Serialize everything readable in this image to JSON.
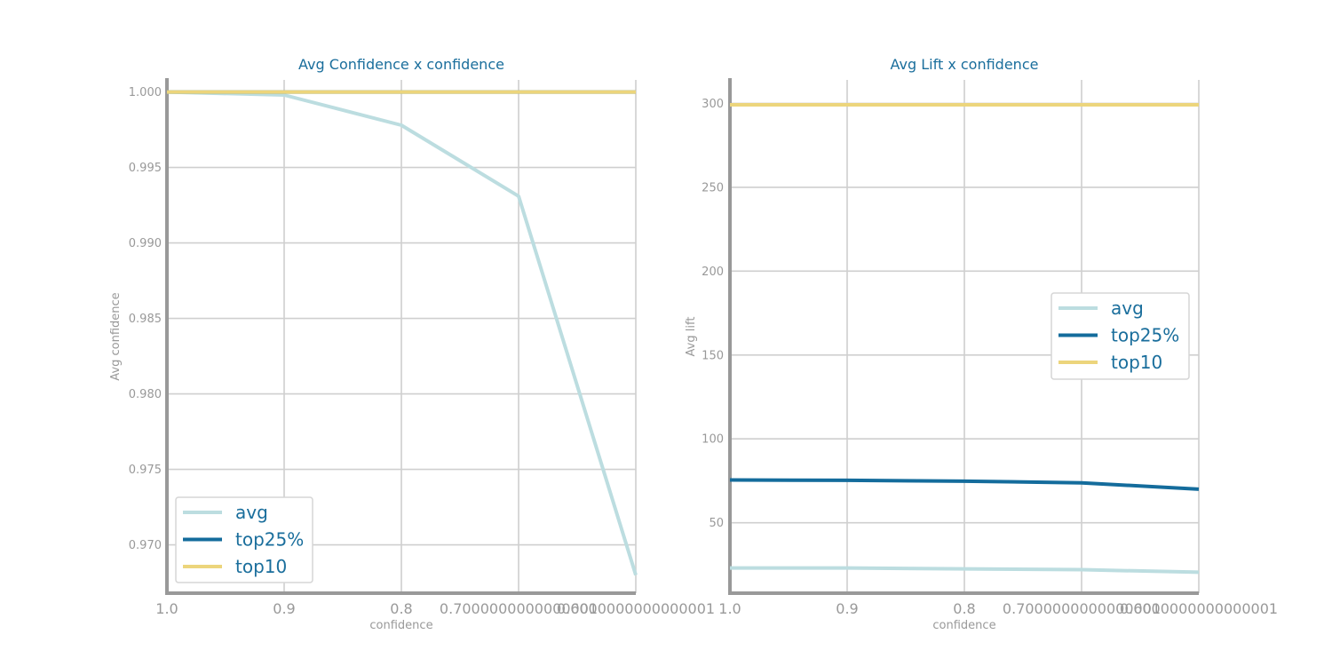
{
  "chart_data": [
    {
      "type": "line",
      "title": "Avg Confidence x confidence",
      "xlabel": "confidence",
      "ylabel": "Avg confidence",
      "categories": [
        "1.0",
        "0.9",
        "0.8",
        "0.7000000000000001",
        "0.6000000000000001"
      ],
      "yticks": [
        "0.970",
        "0.975",
        "0.980",
        "0.985",
        "0.990",
        "0.995",
        "1.000"
      ],
      "ylim": [
        0.9668,
        1.0008
      ],
      "legend_position": "lower-left",
      "series": [
        {
          "name": "avg",
          "color": "#bcdde0",
          "values": [
            1.0,
            0.9998,
            0.9978,
            0.9931,
            0.968
          ]
        },
        {
          "name": "top25%",
          "color": "#146c9c",
          "values": [
            1.0,
            1.0,
            1.0,
            1.0,
            1.0
          ]
        },
        {
          "name": "top10",
          "color": "#ecd57c",
          "values": [
            1.0,
            1.0,
            1.0,
            1.0,
            1.0
          ]
        }
      ]
    },
    {
      "type": "line",
      "title": "Avg Lift x confidence",
      "xlabel": "confidence",
      "ylabel": "Avg lift",
      "categories": [
        "1.0",
        "0.9",
        "0.8",
        "0.7000000000000001",
        "0.6000000000000001"
      ],
      "yticks": [
        "50",
        "100",
        "150",
        "200",
        "250",
        "300"
      ],
      "ylim": [
        8,
        314
      ],
      "legend_position": "center-right",
      "series": [
        {
          "name": "avg",
          "color": "#bcdde0",
          "values": [
            23,
            23,
            22.5,
            22,
            20.5
          ]
        },
        {
          "name": "top25%",
          "color": "#146c9c",
          "values": [
            75.5,
            75.3,
            74.8,
            73.8,
            70
          ]
        },
        {
          "name": "top10",
          "color": "#ecd57c",
          "values": [
            299.2,
            299.2,
            299.2,
            299.2,
            299.2
          ]
        }
      ]
    }
  ]
}
